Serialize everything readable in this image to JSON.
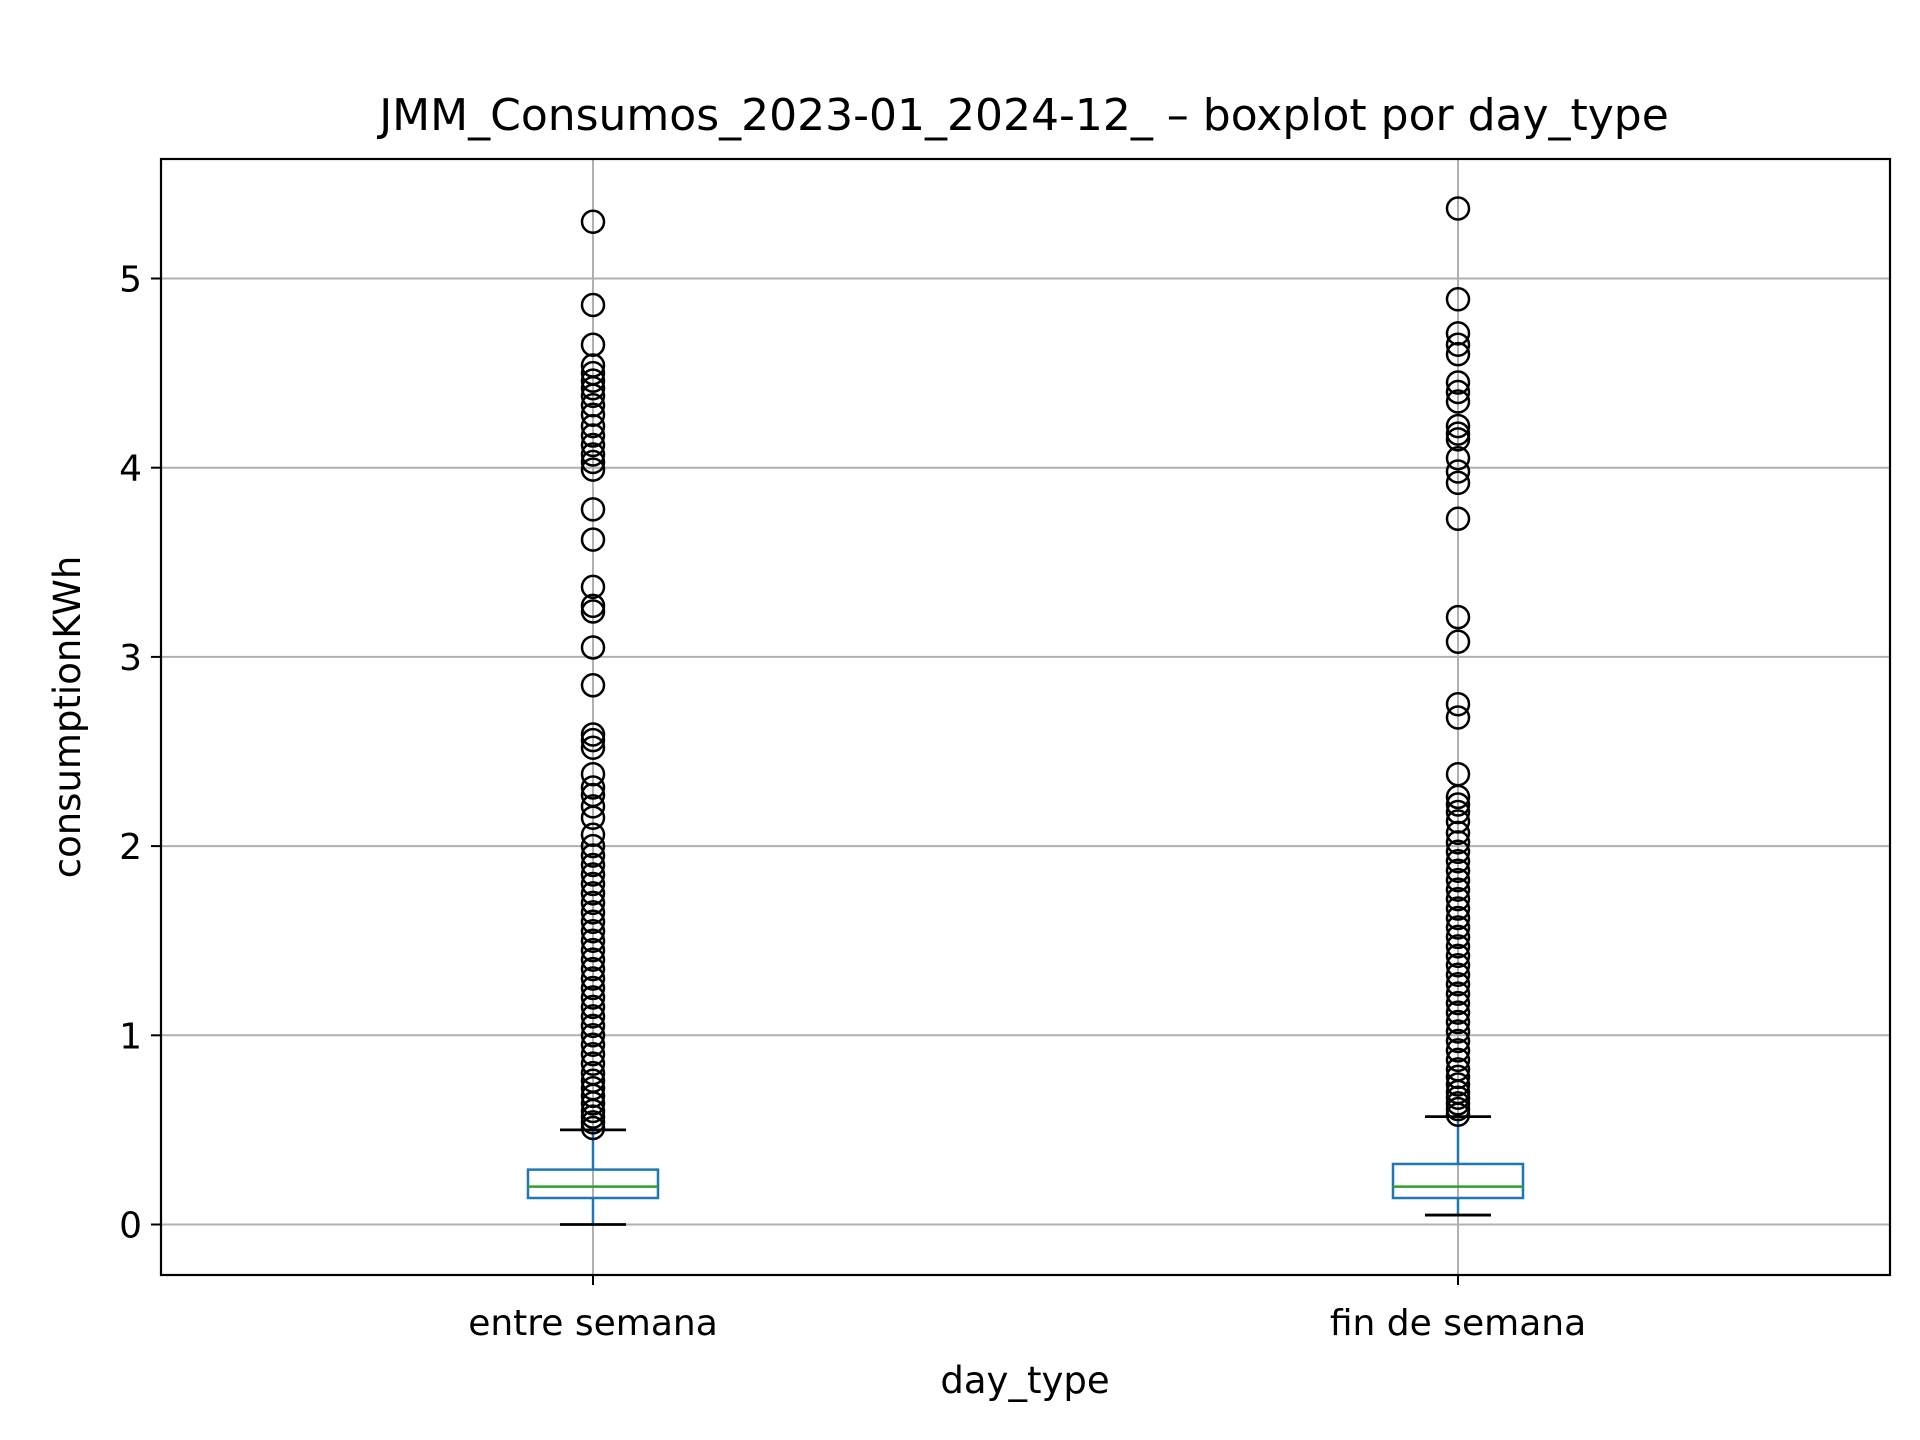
{
  "chart_data": {
    "type": "box",
    "title": "JMM_Consumos_2023-01_2024-12_ – boxplot por day_type",
    "xlabel": "day_type",
    "ylabel": "consumptionKWh",
    "ylim": [
      -0.27,
      5.63
    ],
    "yticks": [
      0,
      1,
      2,
      3,
      4,
      5
    ],
    "grid": true,
    "categories": [
      "entre semana",
      "fin de semana"
    ],
    "boxes": [
      {
        "category": "entre semana",
        "whislo": 0.0,
        "q1": 0.14,
        "median": 0.2,
        "q3": 0.29,
        "whishi": 0.5,
        "fliers": [
          5.3,
          4.86,
          4.65,
          4.54,
          4.5,
          4.46,
          4.42,
          4.38,
          4.33,
          4.28,
          4.22,
          4.17,
          4.12,
          4.07,
          4.03,
          3.99,
          3.78,
          3.62,
          3.37,
          3.27,
          3.24,
          3.05,
          2.85,
          2.59,
          2.56,
          2.52,
          2.38,
          2.31,
          2.27,
          2.21,
          2.15,
          2.06,
          2.0,
          1.95,
          1.9,
          1.85,
          1.8,
          1.75,
          1.7,
          1.65,
          1.6,
          1.55,
          1.5,
          1.45,
          1.4,
          1.35,
          1.3,
          1.25,
          1.2,
          1.15,
          1.1,
          1.05,
          1.0,
          0.95,
          0.9,
          0.85,
          0.8,
          0.76,
          0.72,
          0.68,
          0.64,
          0.6,
          0.57,
          0.54,
          0.51
        ]
      },
      {
        "category": "fin de semana",
        "whislo": 0.05,
        "q1": 0.14,
        "median": 0.2,
        "q3": 0.32,
        "whishi": 0.57,
        "fliers": [
          5.37,
          4.89,
          4.71,
          4.65,
          4.6,
          4.45,
          4.4,
          4.35,
          4.22,
          4.18,
          4.15,
          4.05,
          3.98,
          3.92,
          3.73,
          3.21,
          3.08,
          2.75,
          2.68,
          2.38,
          2.26,
          2.22,
          2.18,
          2.13,
          2.07,
          2.02,
          1.97,
          1.92,
          1.87,
          1.82,
          1.77,
          1.72,
          1.67,
          1.62,
          1.57,
          1.52,
          1.47,
          1.42,
          1.37,
          1.32,
          1.27,
          1.22,
          1.17,
          1.12,
          1.07,
          1.02,
          0.97,
          0.92,
          0.87,
          0.82,
          0.78,
          0.74,
          0.7,
          0.67,
          0.64,
          0.61,
          0.58
        ]
      }
    ],
    "colors": {
      "box": "#1f77b4",
      "median": "#2ca02c",
      "flier": "#000000",
      "cap": "#000000",
      "grid": "#b0b0b0"
    }
  }
}
